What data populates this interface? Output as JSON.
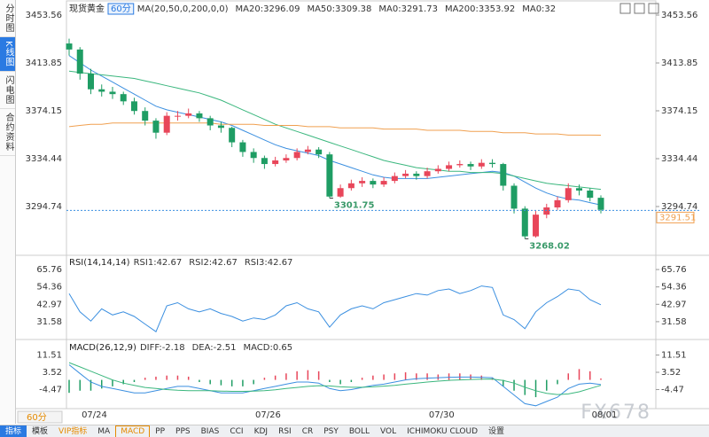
{
  "sidebar": [
    "分时图",
    "K线图",
    "闪电图",
    "合约资料"
  ],
  "toolbar": [
    "指标",
    "模板",
    "VIP指标",
    "MA",
    "MACD",
    "PP",
    "PPS",
    "BIAS",
    "CCI",
    "KDJ",
    "RSI",
    "CR",
    "PSY",
    "BOLL",
    "VOL",
    "ICHIMOKU CLOUD",
    "设置"
  ],
  "bottom_interval": "60分",
  "watermark": "FX678",
  "chart_data": [
    {
      "type": "candlestick",
      "title": "现货黄金",
      "interval": "60分",
      "headers": [
        {
          "text": "MA(20,50,0,200,0,0)",
          "color": "#333333"
        },
        {
          "text": "MA20:3296.09",
          "color": "#3b8fe0"
        },
        {
          "text": "MA50:3309.38",
          "color": "#3bb77e"
        },
        {
          "text": "MA0:3291.73",
          "color": "#5b7be0"
        },
        {
          "text": "MA200:3353.92",
          "color": "#f0a050"
        },
        {
          "text": "MA0:32",
          "color": "#e07ac0"
        }
      ],
      "categories": [
        null,
        null,
        "07/24",
        null,
        null,
        null,
        null,
        null,
        null,
        null,
        null,
        null,
        null,
        null,
        null,
        null,
        null,
        null,
        "07/26",
        null,
        null,
        null,
        null,
        null,
        null,
        null,
        null,
        null,
        null,
        null,
        null,
        null,
        null,
        null,
        "07/30",
        null,
        null,
        null,
        null,
        null,
        null,
        null,
        null,
        null,
        null,
        null,
        null,
        null,
        null,
        "08/01"
      ],
      "up_color": "#e8465a",
      "down_color": "#1f9d64",
      "candles": [
        [
          3430,
          3434,
          3420,
          3425
        ],
        [
          3425,
          3427,
          3400,
          3405
        ],
        [
          3405,
          3409,
          3388,
          3392
        ],
        [
          3392,
          3396,
          3386,
          3390
        ],
        [
          3390,
          3394,
          3384,
          3388
        ],
        [
          3388,
          3390,
          3379,
          3382
        ],
        [
          3382,
          3385,
          3371,
          3374
        ],
        [
          3374,
          3377,
          3362,
          3366
        ],
        [
          3366,
          3368,
          3351,
          3356
        ],
        [
          3356,
          3373,
          3354,
          3370
        ],
        [
          3370,
          3374,
          3366,
          3370
        ],
        [
          3370,
          3376,
          3368,
          3372
        ],
        [
          3372,
          3374,
          3365,
          3368
        ],
        [
          3368,
          3370,
          3358,
          3362
        ],
        [
          3362,
          3365,
          3356,
          3360
        ],
        [
          3360,
          3361,
          3344,
          3348
        ],
        [
          3348,
          3350,
          3336,
          3340
        ],
        [
          3340,
          3343,
          3331,
          3335
        ],
        [
          3335,
          3337,
          3326,
          3330
        ],
        [
          3330,
          3336,
          3328,
          3333
        ],
        [
          3333,
          3338,
          3331,
          3335
        ],
        [
          3335,
          3343,
          3333,
          3340
        ],
        [
          3340,
          3345,
          3338,
          3342
        ],
        [
          3342,
          3344,
          3335,
          3338
        ],
        [
          3338,
          3340,
          3301.75,
          3303
        ],
        [
          3303,
          3313,
          3302,
          3310
        ],
        [
          3310,
          3317,
          3308,
          3314
        ],
        [
          3314,
          3319,
          3311,
          3316
        ],
        [
          3316,
          3318,
          3310,
          3313
        ],
        [
          3313,
          3319,
          3311,
          3316
        ],
        [
          3316,
          3323,
          3314,
          3320
        ],
        [
          3320,
          3325,
          3318,
          3322
        ],
        [
          3322,
          3324,
          3317,
          3320
        ],
        [
          3320,
          3327,
          3318,
          3324
        ],
        [
          3324,
          3329,
          3322,
          3326
        ],
        [
          3326,
          3332,
          3324,
          3329
        ],
        [
          3329,
          3333,
          3327,
          3330
        ],
        [
          3330,
          3332,
          3325,
          3328
        ],
        [
          3328,
          3334,
          3326,
          3331
        ],
        [
          3331,
          3334,
          3327,
          3330
        ],
        [
          3330,
          3331,
          3308,
          3312
        ],
        [
          3312,
          3314,
          3289,
          3293
        ],
        [
          3293,
          3295,
          3268.02,
          3270
        ],
        [
          3270,
          3291,
          3269,
          3288
        ],
        [
          3288,
          3297,
          3285,
          3294
        ],
        [
          3294,
          3303,
          3292,
          3300
        ],
        [
          3300,
          3314,
          3298,
          3310
        ],
        [
          3310,
          3313,
          3304,
          3308
        ],
        [
          3308,
          3310,
          3299,
          3302
        ],
        [
          3302,
          3304,
          3289,
          3292
        ]
      ],
      "series": [
        {
          "color": "#3b8fe0",
          "values": [
            3420,
            3414,
            3408,
            3403,
            3398,
            3393,
            3388,
            3383,
            3378,
            3375,
            3373,
            3371,
            3369,
            3367,
            3365,
            3362,
            3358,
            3354,
            3350,
            3346,
            3343,
            3341,
            3339,
            3337,
            3333,
            3330,
            3327,
            3324,
            3321,
            3319,
            3318,
            3318,
            3318,
            3318,
            3319,
            3320,
            3321,
            3322,
            3323,
            3324,
            3323,
            3320,
            3315,
            3310,
            3306,
            3303,
            3301,
            3300,
            3298,
            3296
          ]
        },
        {
          "color": "#3bb77e",
          "values": [
            3407,
            3406,
            3405,
            3404,
            3403,
            3402,
            3401,
            3399,
            3397,
            3395,
            3393,
            3391,
            3389,
            3386,
            3383,
            3379,
            3375,
            3371,
            3367,
            3363,
            3360,
            3357,
            3354,
            3351,
            3348,
            3345,
            3342,
            3339,
            3336,
            3333,
            3331,
            3329,
            3327,
            3326,
            3325,
            3324,
            3324,
            3323,
            3323,
            3323,
            3322,
            3320,
            3318,
            3316,
            3314,
            3313,
            3312,
            3311,
            3310,
            3309
          ]
        },
        {
          "color": "#f0a050",
          "values": [
            3361,
            3362,
            3363,
            3363,
            3364,
            3364,
            3364,
            3364,
            3364,
            3364,
            3364,
            3364,
            3364,
            3364,
            3363,
            3363,
            3363,
            3363,
            3362,
            3362,
            3362,
            3362,
            3361,
            3361,
            3361,
            3360,
            3360,
            3360,
            3360,
            3359,
            3359,
            3359,
            3359,
            3358,
            3358,
            3358,
            3358,
            3357,
            3357,
            3357,
            3356,
            3356,
            3356,
            3355,
            3355,
            3355,
            3354,
            3354,
            3354,
            3353.92
          ]
        }
      ],
      "annotations": [
        3301.75,
        3268.02
      ],
      "last_price": 3291.51,
      "ylim": [
        3256.5,
        3462.4
      ],
      "yticks": [
        3453.56,
        3413.85,
        3374.15,
        3334.44,
        3294.74
      ]
    },
    {
      "type": "line",
      "title": "RSI(14,14,14)",
      "headers": [
        {
          "text": "RSI1:42.67",
          "color": "#3b8fe0"
        },
        {
          "text": "RSI2:42.67",
          "color": "#3b8fe0"
        },
        {
          "text": "RSI3:42.67",
          "color": "#3b8fe0"
        }
      ],
      "series": [
        {
          "color": "#3b8fe0",
          "values": [
            50,
            38,
            32,
            40,
            36,
            38,
            35,
            30,
            25,
            42,
            44,
            40,
            38,
            40,
            37,
            35,
            32,
            34,
            33,
            36,
            42,
            44,
            40,
            38,
            28,
            36,
            40,
            42,
            40,
            44,
            46,
            48,
            50,
            49,
            52,
            53,
            50,
            52,
            55,
            54,
            36,
            33,
            27,
            38,
            44,
            48,
            53,
            52,
            46,
            42.67
          ]
        }
      ],
      "ylim": [
        19.9,
        75.1
      ],
      "yticks": [
        65.76,
        54.36,
        42.97,
        31.58
      ]
    },
    {
      "type": "macd",
      "title": "MACD(26,12,9)",
      "headers": [
        {
          "text": "DIFF:-2.18",
          "color": "#3b8fe0"
        },
        {
          "text": "DEA:-2.51",
          "color": "#3bb77e"
        },
        {
          "text": "MACD:0.65",
          "color": "#3b8fe0"
        }
      ],
      "up_color": "#e8465a",
      "down_color": "#1f9d64",
      "histogram": [
        -6,
        -5,
        -5,
        -4,
        -3,
        -2,
        -1,
        1,
        1.5,
        2,
        2,
        1.5,
        -1,
        -2,
        -2.5,
        -3,
        -3,
        -2,
        1,
        2,
        3,
        4,
        4.5,
        4,
        -1,
        -2,
        -1,
        1,
        2,
        2.5,
        3,
        3.5,
        3,
        3,
        2.5,
        3,
        3,
        2.5,
        2,
        1,
        -3,
        -5,
        -7,
        -8,
        -5,
        -2,
        3,
        5,
        4,
        0.65
      ],
      "series": [
        {
          "color": "#3b8fe0",
          "values": [
            7,
            3,
            -1,
            -3,
            -4,
            -5,
            -6,
            -6,
            -5,
            -4,
            -3,
            -3,
            -4,
            -5,
            -6,
            -6,
            -6,
            -5,
            -4,
            -3,
            -2,
            -1,
            -1,
            -1.5,
            -4,
            -5,
            -4.5,
            -3.5,
            -2.5,
            -2,
            -1,
            0,
            0.5,
            0.8,
            1,
            1.2,
            1.3,
            1.3,
            1.2,
            1,
            -3,
            -7,
            -11,
            -12,
            -10,
            -8,
            -4,
            -2,
            -1.5,
            -2.18
          ]
        },
        {
          "color": "#3bb77e",
          "values": [
            8,
            6,
            4,
            2,
            0,
            -1.5,
            -2.5,
            -3.5,
            -4,
            -4.5,
            -4.8,
            -5,
            -5,
            -5,
            -5.2,
            -5.3,
            -5.3,
            -5.2,
            -5,
            -4.6,
            -4,
            -3.5,
            -3,
            -2.7,
            -2.8,
            -3.2,
            -3.4,
            -3.4,
            -3.2,
            -2.9,
            -2.5,
            -2,
            -1.5,
            -1,
            -0.6,
            -0.2,
            0,
            0.2,
            0.3,
            0.4,
            -0.3,
            -1.5,
            -3.4,
            -5,
            -6.2,
            -6.8,
            -6.5,
            -5.5,
            -4,
            -2.51
          ]
        }
      ],
      "ylim": [
        -12.9,
        18.7
      ],
      "yticks": [
        11.51,
        3.52,
        -4.47
      ]
    }
  ]
}
